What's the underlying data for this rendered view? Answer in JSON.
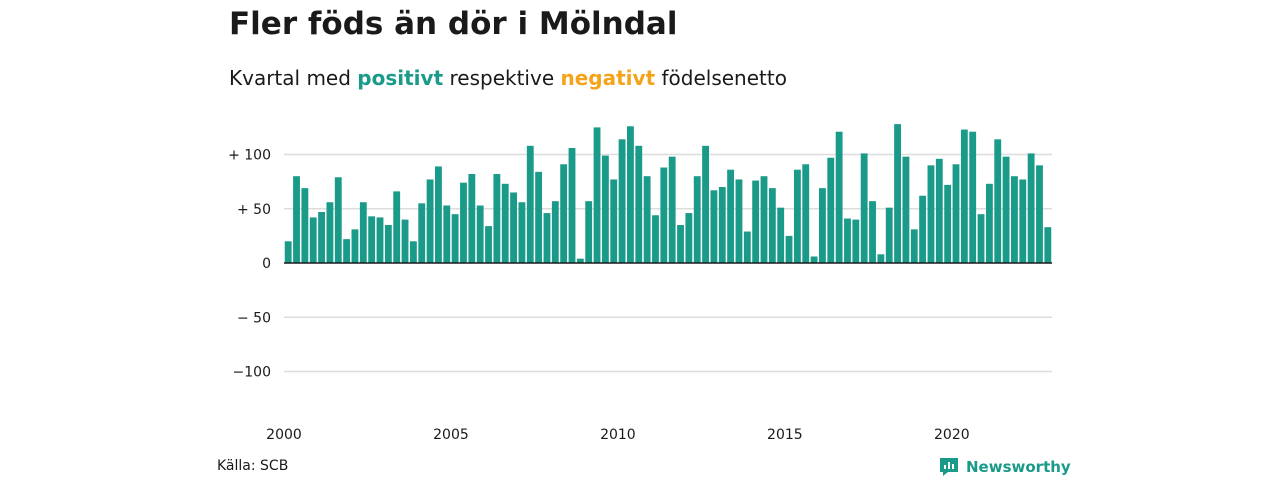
{
  "colors": {
    "positive": "#1a9a89",
    "negative": "#f5a31a",
    "grid": "#dddddd",
    "axis": "#1a1a1a",
    "brand": "#1a9a89"
  },
  "header": {
    "title": "Fler föds än dör i Mölndal",
    "subtitle_prefix": "Kvartal med",
    "subtitle_positive": "positivt",
    "subtitle_middle": "respektive",
    "subtitle_negative": "negativt",
    "subtitle_suffix": "födelsenetto"
  },
  "footer": {
    "source": "Källa: SCB",
    "brand_name": "Newsworthy",
    "brand_icon": "newsworthy-logo-icon"
  },
  "chart_data": {
    "type": "bar",
    "title": "Fler föds än dör i Mölndal",
    "subtitle": "Kvartal med positivt respektive negativt födelsenetto",
    "xlabel": "",
    "ylabel": "",
    "x_start": "2000 Q1",
    "x_ticks": [
      "2000",
      "2005",
      "2010",
      "2015",
      "2020"
    ],
    "y_ticks": [
      {
        "value": 100,
        "label": "+ 100"
      },
      {
        "value": 50,
        "label": "+  50"
      },
      {
        "value": 0,
        "label": "0"
      },
      {
        "value": -50,
        "label": "− 50"
      },
      {
        "value": -100,
        "label": "−100"
      }
    ],
    "ylim": [
      -120,
      130
    ],
    "grid": true,
    "legend": "none",
    "series": [
      {
        "values": [
          20,
          80,
          69,
          42,
          47,
          56,
          79,
          22,
          31,
          56,
          43,
          42,
          35,
          66,
          40,
          20,
          55,
          77,
          89,
          53,
          45,
          74,
          82,
          53,
          34,
          82,
          73,
          65,
          56,
          108,
          84,
          46,
          57,
          91,
          106,
          4,
          57,
          125,
          99,
          77,
          114,
          126,
          108,
          80,
          44,
          88,
          98,
          35,
          46,
          80,
          108,
          67,
          70,
          86,
          77,
          29,
          76,
          80,
          69,
          51,
          25,
          86,
          91,
          6,
          69,
          97,
          121,
          41,
          40,
          101,
          57,
          8,
          51,
          128,
          98,
          31,
          62,
          90,
          96,
          72,
          91,
          123,
          121,
          45,
          73,
          114,
          98,
          80,
          77,
          101,
          90,
          33
        ]
      }
    ]
  }
}
